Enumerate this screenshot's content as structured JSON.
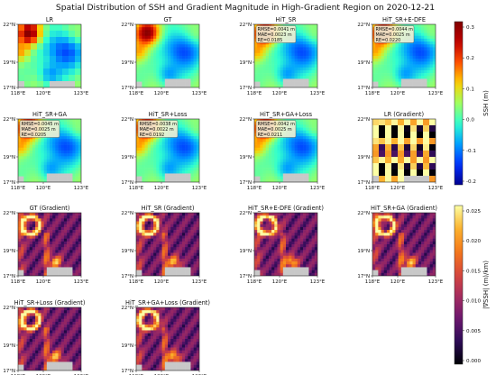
{
  "figure": {
    "title": "Spatial Distribution of SSH and Gradient Magnitude in High-Gradient Region on 2020-12-21"
  },
  "axes_ticks": {
    "x": [
      "118°E",
      "120°E",
      "123°E"
    ],
    "y": [
      "22°N",
      "19°N",
      "17°N"
    ]
  },
  "colorbars": {
    "ssh": {
      "label": "SSH (m)",
      "ticks": [
        "0.3",
        "0.2",
        "0.1",
        "0.0",
        "-0.1",
        "-0.2"
      ],
      "palette": [
        "#00008f",
        "#0030ff",
        "#00a0ff",
        "#30ffd0",
        "#a0ff60",
        "#ffd000",
        "#ff5000",
        "#c00000",
        "#800000"
      ]
    },
    "grad": {
      "label": "|∇SSH| (m)/km)",
      "ticks": [
        "0.025",
        "0.020",
        "0.015",
        "0.010",
        "0.005",
        "0.000"
      ],
      "palette": [
        "#000004",
        "#2c0b57",
        "#6a176e",
        "#a52c60",
        "#d8483b",
        "#f5791a",
        "#fbb32f",
        "#fcfea4"
      ]
    }
  },
  "chart_data": {
    "type": "heatmap",
    "date": "2020-12-21",
    "extent": {
      "lon": [
        "118°E",
        "123°E"
      ],
      "lat": [
        "17°N",
        "22°N"
      ]
    },
    "ssh_range_m": [
      -0.28,
      0.32
    ],
    "gradient_range_m_per_km": [
      0.0,
      0.028
    ],
    "panels_ssh": [
      {
        "title": "LR"
      },
      {
        "title": "GT"
      },
      {
        "title": "HiT_SR",
        "rmse": "RMSE=0.0041 m",
        "mae": "MAE=0.0023 m",
        "re": "RE=0.0185"
      },
      {
        "title": "HiT_SR+E-DFE",
        "rmse": "RMSE=0.0044 m",
        "mae": "MAE=0.0025 m",
        "re": "RE=0.0220"
      },
      {
        "title": "HiT_SR+GA",
        "rmse": "RMSE=0.0045 m",
        "mae": "MAE=0.0025 m",
        "re": "RE=0.0205"
      },
      {
        "title": "HiT_SR+Loss",
        "rmse": "RMSE=0.0038 m",
        "mae": "MAE=0.0022 m",
        "re": "RE=0.0192"
      },
      {
        "title": "HiT_SR+GA+Loss",
        "rmse": "RMSE=0.0042 m",
        "mae": "MAE=0.0025 m",
        "re": "RE=0.0211"
      }
    ],
    "panels_grad": [
      {
        "title": "LR (Gradient)"
      },
      {
        "title": "GT (Gradient)"
      },
      {
        "title": "HiT_SR (Gradient)"
      },
      {
        "title": "HiT_SR+E-DFE (Gradient)"
      },
      {
        "title": "HiT_SR+GA (Gradient)"
      },
      {
        "title": "HiT_SR+Loss (Gradient)"
      },
      {
        "title": "HiT_SR+GA+Loss (Gradient)"
      }
    ]
  }
}
